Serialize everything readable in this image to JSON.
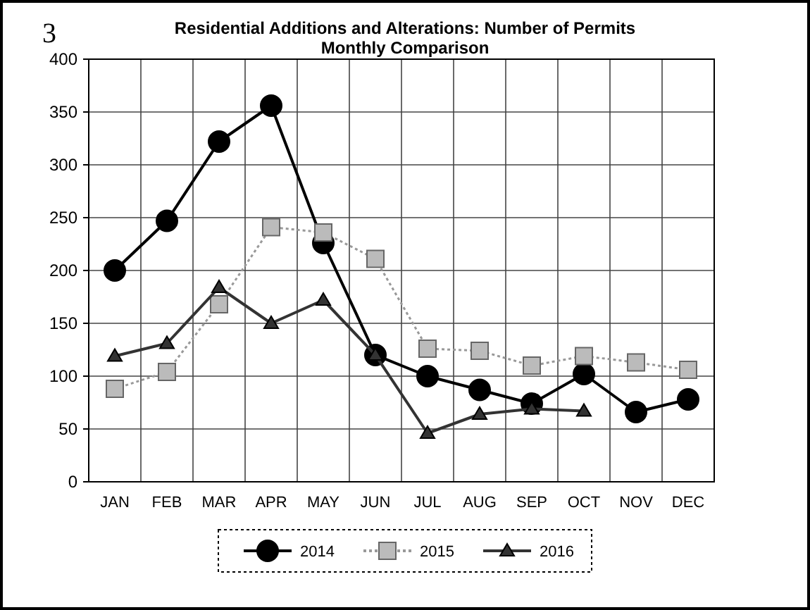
{
  "chart_data": {
    "type": "line",
    "title": "Residential Additions and Alterations: Number of Permits",
    "subtitle": "Monthly Comparison",
    "annotations": [
      "3"
    ],
    "categories": [
      "JAN",
      "FEB",
      "MAR",
      "APR",
      "MAY",
      "JUN",
      "JUL",
      "AUG",
      "SEP",
      "OCT",
      "NOV",
      "DEC"
    ],
    "series": [
      {
        "name": "2014",
        "color": "#000000",
        "marker": "circle",
        "line_style": "solid",
        "values": [
          200,
          247,
          322,
          356,
          226,
          120,
          100,
          87,
          74,
          102,
          66,
          78
        ]
      },
      {
        "name": "2015",
        "color": "#999999",
        "marker": "square",
        "line_style": "dotted",
        "values": [
          88,
          104,
          168,
          241,
          236,
          211,
          126,
          124,
          110,
          119,
          113,
          106
        ]
      },
      {
        "name": "2016",
        "color": "#333333",
        "marker": "triangle",
        "line_style": "solid",
        "values": [
          119,
          131,
          184,
          150,
          172,
          120,
          46,
          64,
          69,
          67,
          null,
          null
        ]
      }
    ],
    "ylim": [
      0,
      400
    ],
    "yticks": [
      0,
      50,
      100,
      150,
      200,
      250,
      300,
      350,
      400
    ],
    "grid": true,
    "legend": "bottom"
  }
}
